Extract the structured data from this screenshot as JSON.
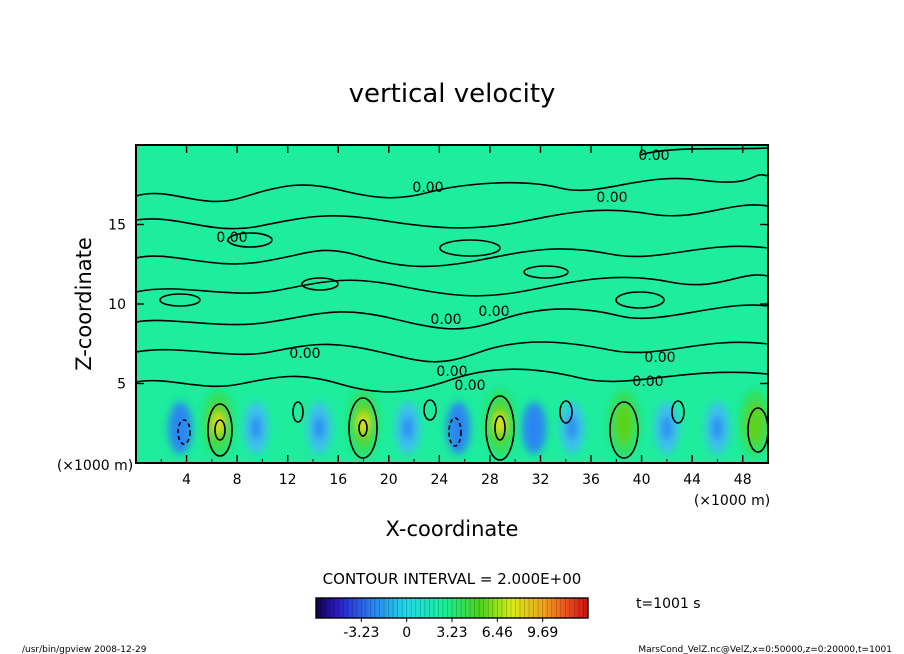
{
  "chart_data": {
    "type": "heatmap",
    "title": "vertical velocity",
    "xlabel": "X-coordinate",
    "ylabel": "Z-coordinate",
    "x_unit_label": "(×1000 m)",
    "y_unit_label": "(×1000 m)",
    "xlim": [
      0,
      50
    ],
    "ylim": [
      0,
      20
    ],
    "x_ticks": [
      "4",
      "8",
      "12",
      "16",
      "20",
      "24",
      "28",
      "32",
      "36",
      "40",
      "44",
      "48"
    ],
    "x_tick_values": [
      4,
      8,
      12,
      16,
      20,
      24,
      28,
      32,
      36,
      40,
      44,
      48
    ],
    "y_ticks": [
      "5",
      "10",
      "15"
    ],
    "y_tick_values": [
      5,
      10,
      15
    ],
    "contour_labels": [
      "0.00",
      "0.00",
      "0.00",
      "0.00",
      "0.00",
      "0.00",
      "0.00",
      "0.00",
      "0.00",
      "0.00",
      "0.00"
    ],
    "contour_interval": "CONTOUR INTERVAL = 2.000E+00",
    "time_label": "t=1001 s",
    "colorbar": {
      "range": [
        -6.46,
        12.92
      ],
      "tick_labels": [
        "-3.23",
        "0",
        "3.23",
        "6.46",
        "9.69"
      ],
      "tick_values": [
        -3.23,
        0,
        3.23,
        6.46,
        9.69
      ]
    },
    "updrafts": [
      {
        "x": 6.5,
        "z": 2.5,
        "w": 9.0
      },
      {
        "x": 18.0,
        "z": 2.5,
        "w": 8.0
      },
      {
        "x": 28.8,
        "z": 2.5,
        "w": 9.0
      },
      {
        "x": 38.6,
        "z": 2.5,
        "w": 7.0
      },
      {
        "x": 49.0,
        "z": 2.5,
        "w": 6.0
      }
    ],
    "downdrafts": [
      {
        "x": 3.5,
        "z": 2.2,
        "w": -3.0
      },
      {
        "x": 9.5,
        "z": 2.2,
        "w": -2.0
      },
      {
        "x": 14.5,
        "z": 2.2,
        "w": -2.0
      },
      {
        "x": 21.5,
        "z": 2.2,
        "w": -2.0
      },
      {
        "x": 25.5,
        "z": 2.2,
        "w": -3.0
      },
      {
        "x": 31.5,
        "z": 2.2,
        "w": -2.5
      },
      {
        "x": 34.5,
        "z": 2.2,
        "w": -1.5
      },
      {
        "x": 42.0,
        "z": 2.2,
        "w": -2.0
      },
      {
        "x": 46.0,
        "z": 2.2,
        "w": -2.0
      }
    ]
  },
  "footer": {
    "left": "/usr/bin/gpview   2008-12-29",
    "right": "MarsCond_VelZ.nc@VelZ,x=0:50000,z=0:20000,t=1001"
  }
}
